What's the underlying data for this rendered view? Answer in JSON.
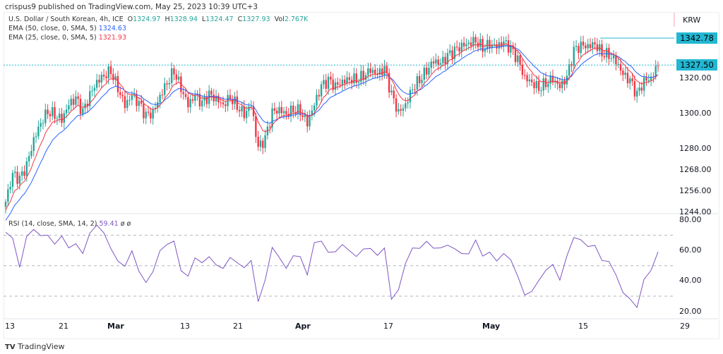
{
  "header": {
    "published": "crispus9 published on TradingView.com, May 25, 2023 10:39 UTC+3"
  },
  "legend": {
    "symbol": "U.S. Dollar / South Korean, 4h, ICE",
    "o_label": "O",
    "o": "1324.97",
    "h_label": "H",
    "h": "1328.94",
    "l_label": "L",
    "l": "1324.47",
    "c_label": "C",
    "c": "1327.93",
    "vol_label": "Vol",
    "vol": "2.767K",
    "ema50_label": "EMA (50, close, 0, SMA, 5)",
    "ema50": "1324.63",
    "ema25_label": "EMA (25, close, 0, SMA, 5)",
    "ema25": "1321.93",
    "rsi_label": "RSI (14, close, SMA, 14, 2)",
    "rsi": "59.41",
    "rsi_extra": "ø ø"
  },
  "currency": "KRW",
  "footer": {
    "brand": "TradingView"
  },
  "colors": {
    "up": "#26a69a",
    "down": "#f23645",
    "ema50": "#2962ff",
    "ema25": "#f23645",
    "rsi": "#7e57c2",
    "level": "#22b7d2"
  },
  "chart_data": [
    {
      "type": "candlestick",
      "title": "U.S. Dollar / South Korean, 4h, ICE",
      "ylim": [
        1244,
        1348
      ],
      "y_ticks": [
        "1320.00",
        "1300.00",
        "1280.00",
        "1268.00",
        "1256.00",
        "1244.00"
      ],
      "price_labels": [
        "1342.78",
        "1327.50"
      ],
      "horizontal_levels": [
        1342.78,
        1327.5
      ],
      "x_ticks": [
        "13",
        "21",
        "Mar",
        "13",
        "21",
        "Apr",
        "17",
        "May",
        "15",
        "29"
      ],
      "closes": [
        1250,
        1265,
        1262,
        1270,
        1285,
        1295,
        1302,
        1300,
        1297,
        1305,
        1308,
        1300,
        1310,
        1318,
        1322,
        1325,
        1315,
        1305,
        1310,
        1305,
        1298,
        1300,
        1310,
        1318,
        1325,
        1315,
        1305,
        1310,
        1305,
        1310,
        1308,
        1305,
        1310,
        1305,
        1300,
        1305,
        1280,
        1285,
        1300,
        1302,
        1300,
        1303,
        1302,
        1295,
        1305,
        1315,
        1318,
        1315,
        1318,
        1320,
        1320,
        1322,
        1325,
        1322,
        1325,
        1310,
        1300,
        1305,
        1315,
        1320,
        1325,
        1330,
        1328,
        1332,
        1335,
        1338,
        1340,
        1342,
        1338,
        1340,
        1338,
        1340,
        1336,
        1330,
        1320,
        1318,
        1315,
        1318,
        1320,
        1315,
        1320,
        1335,
        1338,
        1338,
        1340,
        1335,
        1334,
        1330,
        1322,
        1318,
        1310,
        1318,
        1320,
        1328
      ],
      "series": [
        {
          "name": "EMA (50, close, 0, SMA, 5)",
          "period": 50
        },
        {
          "name": "EMA (25, close, 0, SMA, 5)",
          "period": 25
        }
      ]
    },
    {
      "type": "line",
      "title": "RSI (14, close, SMA, 14, 2)",
      "ylim": [
        15,
        82
      ],
      "y_ticks": [
        "80.00",
        "60.00",
        "40.00",
        "20.00"
      ],
      "bands": [
        70,
        50,
        30
      ],
      "values": [
        72,
        70,
        50,
        68,
        72,
        70,
        72,
        65,
        68,
        60,
        65,
        60,
        72,
        75,
        70,
        62,
        55,
        50,
        58,
        45,
        40,
        48,
        60,
        62,
        65,
        48,
        45,
        55,
        50,
        55,
        52,
        50,
        55,
        50,
        48,
        55,
        28,
        40,
        60,
        55,
        50,
        58,
        55,
        42,
        65,
        68,
        60,
        58,
        62,
        60,
        58,
        62,
        60,
        55,
        62,
        30,
        35,
        50,
        60,
        62,
        68,
        62,
        60,
        62,
        62,
        60,
        58,
        65,
        55,
        60,
        55,
        58,
        52,
        42,
        32,
        35,
        40,
        45,
        50,
        42,
        58,
        68,
        65,
        62,
        65,
        55,
        52,
        42,
        32,
        30,
        24,
        40,
        45,
        59
      ]
    }
  ]
}
